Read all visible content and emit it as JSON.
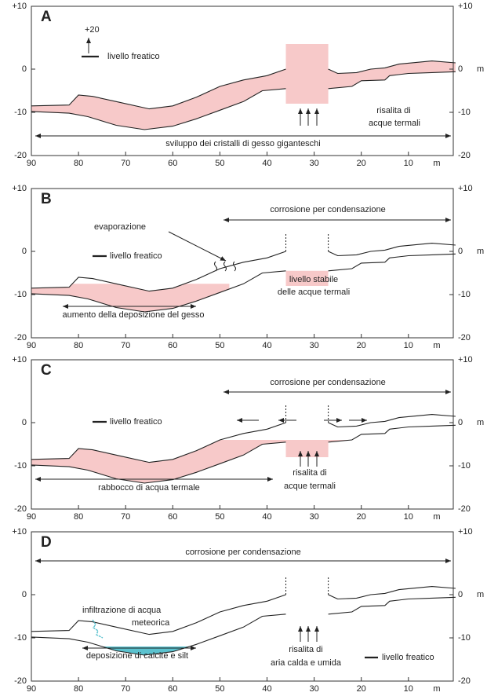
{
  "axis": {
    "left": [
      "+10",
      "0",
      "-10",
      "-20"
    ],
    "right": [
      "+10",
      "0",
      "-10",
      "-20"
    ],
    "right_unit": "m",
    "bottom": [
      "90",
      "80",
      "70",
      "60",
      "50",
      "40",
      "30",
      "20",
      "10"
    ],
    "bottom_unit": "m"
  },
  "panels": [
    {
      "letter": "A",
      "labels": [
        "+20",
        "livello freatico",
        "risalita di",
        "acque termali",
        "sviluppo dei cristalli di gesso giganteschi"
      ]
    },
    {
      "letter": "B",
      "labels": [
        "corrosione per condensazione",
        "evaporazione",
        "livello freatico",
        "livello stabile",
        "delle acque termali",
        "aumento della deposizione del gesso"
      ]
    },
    {
      "letter": "C",
      "labels": [
        "corrosione per condensazione",
        "livello freatico",
        "risalita di",
        "acque termali",
        "rabbocco di acqua termale"
      ]
    },
    {
      "letter": "D",
      "labels": [
        "corrosione per condensazione",
        "infiltrazione di acqua",
        "meteorica",
        "risalita di",
        "aria calda e umida",
        "deposizione di calcite e silt",
        "livello freatico"
      ]
    }
  ]
}
